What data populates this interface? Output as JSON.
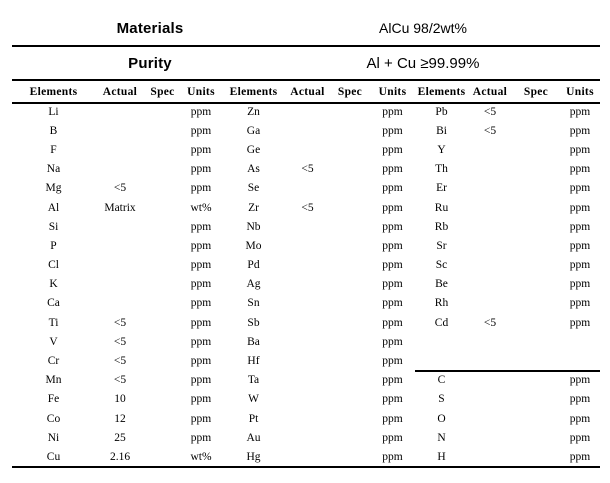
{
  "info": {
    "materials_label": "Materials",
    "materials_value": "AlCu 98/2wt%",
    "purity_label": "Purity",
    "purity_value": "Al + Cu ≥99.99%"
  },
  "table": {
    "column_headers": [
      "Elements",
      "Actual",
      "Spec",
      "Units"
    ],
    "groups": [
      {
        "name": "group-1",
        "rows": [
          [
            "Li",
            "",
            "",
            "ppm"
          ],
          [
            "B",
            "",
            "",
            "ppm"
          ],
          [
            "F",
            "",
            "",
            "ppm"
          ],
          [
            "Na",
            "",
            "",
            "ppm"
          ],
          [
            "Mg",
            "<5",
            "",
            "ppm"
          ],
          [
            "Al",
            "Matrix",
            "",
            "wt%"
          ],
          [
            "Si",
            "",
            "",
            "ppm"
          ],
          [
            "P",
            "",
            "",
            "ppm"
          ],
          [
            "Cl",
            "",
            "",
            "ppm"
          ],
          [
            "K",
            "",
            "",
            "ppm"
          ],
          [
            "Ca",
            "",
            "",
            "ppm"
          ],
          [
            "Ti",
            "<5",
            "",
            "ppm"
          ],
          [
            "V",
            "<5",
            "",
            "ppm"
          ],
          [
            "Cr",
            "<5",
            "",
            "ppm"
          ],
          [
            "Mn",
            "<5",
            "",
            "ppm"
          ],
          [
            "Fe",
            "10",
            "",
            "ppm"
          ],
          [
            "Co",
            "12",
            "",
            "ppm"
          ],
          [
            "Ni",
            "25",
            "",
            "ppm"
          ],
          [
            "Cu",
            "2.16",
            "",
            "wt%"
          ]
        ]
      },
      {
        "name": "group-2",
        "rows": [
          [
            "Zn",
            "",
            "",
            "ppm"
          ],
          [
            "Ga",
            "",
            "",
            "ppm"
          ],
          [
            "Ge",
            "",
            "",
            "ppm"
          ],
          [
            "As",
            "<5",
            "",
            "ppm"
          ],
          [
            "Se",
            "",
            "",
            "ppm"
          ],
          [
            "Zr",
            "<5",
            "",
            "ppm"
          ],
          [
            "Nb",
            "",
            "",
            "ppm"
          ],
          [
            "Mo",
            "",
            "",
            "ppm"
          ],
          [
            "Pd",
            "",
            "",
            "ppm"
          ],
          [
            "Ag",
            "",
            "",
            "ppm"
          ],
          [
            "Sn",
            "",
            "",
            "ppm"
          ],
          [
            "Sb",
            "",
            "",
            "ppm"
          ],
          [
            "Ba",
            "",
            "",
            "ppm"
          ],
          [
            "Hf",
            "",
            "",
            "ppm"
          ],
          [
            "Ta",
            "",
            "",
            "ppm"
          ],
          [
            "W",
            "",
            "",
            "ppm"
          ],
          [
            "Pt",
            "",
            "",
            "ppm"
          ],
          [
            "Au",
            "",
            "",
            "ppm"
          ],
          [
            "Hg",
            "",
            "",
            "ppm"
          ]
        ]
      },
      {
        "name": "group-3",
        "divider_above_row": 14,
        "rows": [
          [
            "Pb",
            "<5",
            "",
            "ppm"
          ],
          [
            "Bi",
            "<5",
            "",
            "ppm"
          ],
          [
            "Y",
            "",
            "",
            "ppm"
          ],
          [
            "Th",
            "",
            "",
            "ppm"
          ],
          [
            "Er",
            "",
            "",
            "ppm"
          ],
          [
            "Ru",
            "",
            "",
            "ppm"
          ],
          [
            "Rb",
            "",
            "",
            "ppm"
          ],
          [
            "Sr",
            "",
            "",
            "ppm"
          ],
          [
            "Sc",
            "",
            "",
            "ppm"
          ],
          [
            "Be",
            "",
            "",
            "ppm"
          ],
          [
            "Rh",
            "",
            "",
            "ppm"
          ],
          [
            "Cd",
            "<5",
            "",
            "ppm"
          ],
          [
            "",
            "",
            "",
            ""
          ],
          [
            "",
            "",
            "",
            ""
          ],
          [
            "C",
            "",
            "",
            "ppm"
          ],
          [
            "S",
            "",
            "",
            "ppm"
          ],
          [
            "O",
            "",
            "",
            "ppm"
          ],
          [
            "N",
            "",
            "",
            "ppm"
          ],
          [
            "H",
            "",
            "",
            "ppm"
          ]
        ]
      }
    ]
  }
}
